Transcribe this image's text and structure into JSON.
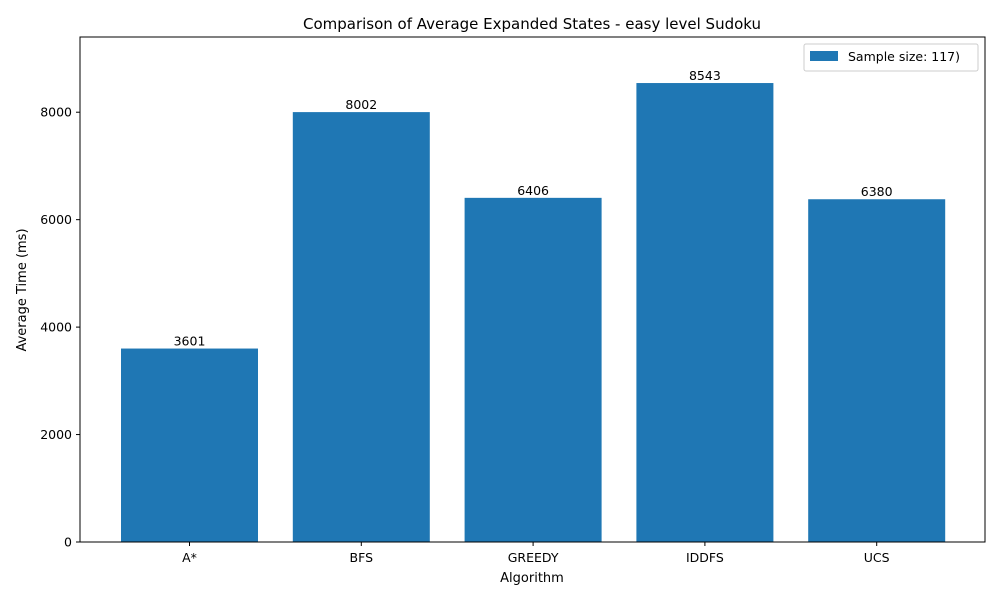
{
  "chart_data": {
    "type": "bar",
    "title": "Comparison of Average Expanded States - easy level Sudoku",
    "xlabel": "Algorithm",
    "ylabel": "Average Time (ms)",
    "categories": [
      "A*",
      "BFS",
      "GREEDY",
      "IDDFS",
      "UCS"
    ],
    "series": [
      {
        "name": "Sample size: 117)",
        "values": [
          3601,
          8002,
          6406,
          8543,
          6380
        ],
        "color": "#1f77b4"
      }
    ],
    "data_labels": [
      "3601",
      "8002",
      "6406",
      "8543",
      "6380"
    ],
    "ylim": [
      0,
      9400
    ],
    "yticks": [
      0,
      2000,
      4000,
      6000,
      8000
    ],
    "ytick_labels": [
      "0",
      "2000",
      "4000",
      "6000",
      "8000"
    ],
    "grid": false,
    "legend_position": "top-right"
  }
}
